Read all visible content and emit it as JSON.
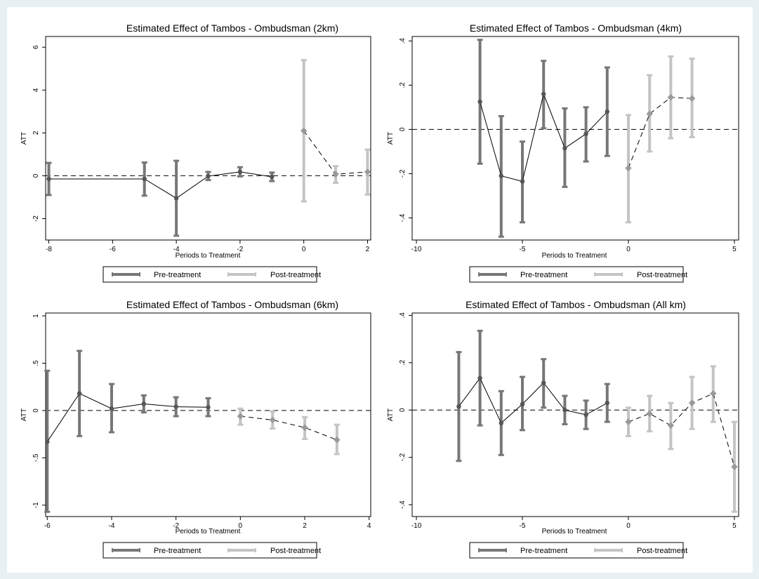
{
  "colors": {
    "pre": "#777777",
    "post": "#c4c4c4",
    "line": "#000000",
    "frame": "#000000",
    "outer": "#e8f0f3"
  },
  "legend": {
    "pre_label": "Pre-treatment",
    "post_label": "Post-treatment"
  },
  "chart_data": [
    {
      "type": "line",
      "title": "Estimated Effect of Tambos -  Ombudsman (2km)",
      "xlabel": "Periods to Treatment",
      "ylabel": "ATT",
      "xlim": [
        -8.1,
        2.1
      ],
      "ylim": [
        -3,
        6.5
      ],
      "xticks": [
        -8,
        -6,
        -4,
        -2,
        0,
        2
      ],
      "xtick_labels": [
        "-8",
        "-6",
        "-4",
        "-2",
        "0",
        "2"
      ],
      "yticks": [
        -2,
        0,
        2,
        4,
        6
      ],
      "ytick_labels": [
        "-2",
        "0",
        "2",
        "4",
        "6"
      ],
      "zero_line": 0,
      "legend_position": "bottom",
      "series": [
        {
          "name": "Pre-treatment",
          "style": "solid",
          "x": [
            -8,
            -5,
            -4,
            -3,
            -2,
            -1
          ],
          "y": [
            -0.15,
            -0.15,
            -1.05,
            -0.02,
            0.18,
            -0.05
          ],
          "lo": [
            -0.9,
            -0.93,
            -2.8,
            -0.2,
            -0.03,
            -0.25
          ],
          "hi": [
            0.6,
            0.62,
            0.7,
            0.18,
            0.4,
            0.15
          ]
        },
        {
          "name": "Post-treatment",
          "style": "dashed",
          "x": [
            0,
            1,
            2
          ],
          "y": [
            2.1,
            0.07,
            0.18
          ],
          "lo": [
            -1.2,
            -0.33,
            -0.88
          ],
          "hi": [
            5.4,
            0.45,
            1.22
          ]
        }
      ]
    },
    {
      "type": "line",
      "title": "Estimated Effect of Tambos -  Ombudsman (4km)",
      "xlabel": "Periods to Treatment",
      "ylabel": "ATT",
      "xlim": [
        -10.2,
        5.2
      ],
      "ylim": [
        -0.5,
        0.42
      ],
      "xticks": [
        -10,
        -5,
        0,
        5
      ],
      "xtick_labels": [
        "-10",
        "-5",
        "0",
        "5"
      ],
      "yticks": [
        -0.4,
        -0.2,
        0,
        0.2,
        0.4
      ],
      "ytick_labels": [
        "-.4",
        "-.2",
        "0",
        ".2",
        ".4"
      ],
      "zero_line": 0,
      "legend_position": "bottom",
      "series": [
        {
          "name": "Pre-treatment",
          "style": "solid",
          "x": [
            -7,
            -6,
            -5,
            -4,
            -3,
            -2,
            -1
          ],
          "y": [
            0.125,
            -0.21,
            -0.235,
            0.16,
            -0.085,
            -0.02,
            0.08
          ],
          "lo": [
            -0.155,
            -0.485,
            -0.42,
            0.005,
            -0.26,
            -0.145,
            -0.12
          ],
          "hi": [
            0.405,
            0.06,
            -0.055,
            0.31,
            0.095,
            0.1,
            0.28
          ]
        },
        {
          "name": "Post-treatment",
          "style": "dashed",
          "x": [
            0,
            1,
            2,
            3
          ],
          "y": [
            -0.175,
            0.07,
            0.145,
            0.14
          ],
          "lo": [
            -0.42,
            -0.1,
            -0.04,
            -0.035
          ],
          "hi": [
            0.065,
            0.245,
            0.33,
            0.32
          ]
        }
      ]
    },
    {
      "type": "line",
      "title": "Estimated Effect of Tambos -  Ombudsman (6km)",
      "xlabel": "Periods to Treatment",
      "ylabel": "ATT",
      "xlim": [
        -6.05,
        4.05
      ],
      "ylim": [
        -1.12,
        1.03
      ],
      "xticks": [
        -6,
        -4,
        -2,
        0,
        2,
        4
      ],
      "xtick_labels": [
        "-6",
        "-4",
        "-2",
        "0",
        "2",
        "4"
      ],
      "yticks": [
        -1,
        -0.5,
        0,
        0.5,
        1
      ],
      "ytick_labels": [
        "-1",
        "-.5",
        "0",
        ".5",
        "1"
      ],
      "zero_line": 0,
      "legend_position": "bottom",
      "series": [
        {
          "name": "Pre-treatment",
          "style": "solid",
          "x": [
            -6,
            -5,
            -4,
            -3,
            -2,
            -1
          ],
          "y": [
            -0.33,
            0.18,
            0.02,
            0.07,
            0.04,
            0.035
          ],
          "lo": [
            -1.07,
            -0.27,
            -0.23,
            -0.02,
            -0.06,
            -0.06
          ],
          "hi": [
            0.42,
            0.63,
            0.28,
            0.16,
            0.14,
            0.13
          ]
        },
        {
          "name": "Post-treatment",
          "style": "dashed",
          "x": [
            0,
            1,
            2,
            3
          ],
          "y": [
            -0.06,
            -0.1,
            -0.18,
            -0.31
          ],
          "lo": [
            -0.15,
            -0.19,
            -0.3,
            -0.46
          ],
          "hi": [
            0.02,
            -0.01,
            -0.07,
            -0.15
          ]
        }
      ]
    },
    {
      "type": "line",
      "title": "Estimated Effect of Tambos -  Ombudsman (All km)",
      "xlabel": "Periods to Treatment",
      "ylabel": "ATT",
      "xlim": [
        -10.2,
        5.2
      ],
      "ylim": [
        -0.45,
        0.41
      ],
      "xticks": [
        -10,
        -5,
        0,
        5
      ],
      "xtick_labels": [
        "-10",
        "-5",
        "0",
        "5"
      ],
      "yticks": [
        -0.4,
        -0.2,
        0,
        0.2,
        0.4
      ],
      "ytick_labels": [
        "-.4",
        "-.2",
        "0",
        ".2",
        ".4"
      ],
      "zero_line": 0,
      "legend_position": "bottom",
      "series": [
        {
          "name": "Pre-treatment",
          "style": "solid",
          "x": [
            -8,
            -7,
            -6,
            -5,
            -4,
            -3,
            -2,
            -1
          ],
          "y": [
            0.015,
            0.135,
            -0.055,
            0.025,
            0.115,
            0.0,
            -0.02,
            0.03
          ],
          "lo": [
            -0.215,
            -0.065,
            -0.19,
            -0.085,
            0.01,
            -0.06,
            -0.08,
            -0.05
          ],
          "hi": [
            0.245,
            0.335,
            0.08,
            0.14,
            0.215,
            0.06,
            0.04,
            0.11
          ]
        },
        {
          "name": "Post-treatment",
          "style": "dashed",
          "x": [
            0,
            1,
            2,
            3,
            4,
            5
          ],
          "y": [
            -0.05,
            -0.015,
            -0.065,
            0.03,
            0.07,
            -0.24
          ],
          "lo": [
            -0.11,
            -0.09,
            -0.165,
            -0.08,
            -0.05,
            -0.43
          ],
          "hi": [
            0.01,
            0.06,
            0.03,
            0.14,
            0.185,
            -0.05
          ]
        }
      ]
    }
  ]
}
